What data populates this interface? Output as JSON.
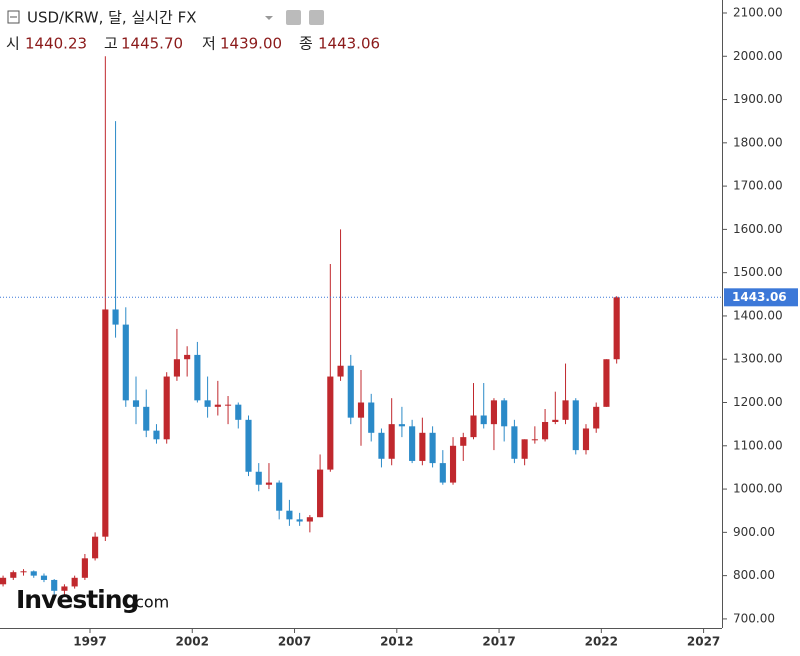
{
  "chart_data": {
    "type": "candlestick",
    "title": "USD/KRW, 달, 실시간 FX",
    "header": {
      "open_label": "시",
      "open": "1440.23",
      "high_label": "고",
      "high": "1445.70",
      "low_label": "저",
      "low": "1439.00",
      "close_label": "종",
      "close": "1443.06"
    },
    "logo": {
      "brand": "Investing",
      "suffix": ".com"
    },
    "x": [
      1992.75,
      1993.25,
      1993.75,
      1994.25,
      1994.75,
      1995.25,
      1995.75,
      1996.25,
      1996.75,
      1997.25,
      1997.75,
      1998.25,
      1998.75,
      1999.25,
      1999.75,
      2000.25,
      2000.75,
      2001.25,
      2001.75,
      2002.25,
      2002.75,
      2003.25,
      2003.75,
      2004.25,
      2004.75,
      2005.25,
      2005.75,
      2006.25,
      2006.75,
      2007.25,
      2007.75,
      2008.25,
      2008.75,
      2009.25,
      2009.75,
      2010.25,
      2010.75,
      2011.25,
      2011.75,
      2012.25,
      2012.75,
      2013.25,
      2013.75,
      2014.25,
      2014.75,
      2015.25,
      2015.75,
      2016.25,
      2016.75,
      2017.25,
      2017.75,
      2018.25,
      2018.75,
      2019.25,
      2019.75,
      2020.25,
      2020.75,
      2021.25,
      2021.75,
      2022.25,
      2022.75
    ],
    "open": [
      780,
      795,
      808,
      810,
      800,
      790,
      765,
      775,
      795,
      840,
      890,
      1415,
      1380,
      1205,
      1190,
      1135,
      1115,
      1260,
      1300,
      1310,
      1205,
      1190,
      1195,
      1195,
      1160,
      1040,
      1010,
      1015,
      950,
      930,
      925,
      935,
      1045,
      1260,
      1285,
      1165,
      1200,
      1130,
      1070,
      1150,
      1145,
      1065,
      1130,
      1060,
      1015,
      1100,
      1120,
      1170,
      1150,
      1205,
      1145,
      1070,
      1115,
      1115,
      1155,
      1160,
      1205,
      1090,
      1140,
      1190,
      1300
    ],
    "high": [
      800,
      812,
      815,
      812,
      805,
      792,
      780,
      800,
      850,
      900,
      2000,
      1850,
      1420,
      1260,
      1230,
      1150,
      1270,
      1370,
      1330,
      1340,
      1260,
      1250,
      1215,
      1200,
      1170,
      1060,
      1060,
      1020,
      975,
      945,
      940,
      1080,
      1520,
      1600,
      1310,
      1275,
      1220,
      1140,
      1210,
      1190,
      1160,
      1165,
      1145,
      1090,
      1120,
      1130,
      1245,
      1245,
      1210,
      1210,
      1160,
      1115,
      1145,
      1185,
      1225,
      1290,
      1210,
      1150,
      1200,
      1300,
      1445.7
    ],
    "low": [
      775,
      790,
      800,
      795,
      785,
      755,
      755,
      770,
      790,
      835,
      880,
      1350,
      1190,
      1150,
      1120,
      1105,
      1105,
      1250,
      1260,
      1200,
      1165,
      1170,
      1150,
      1140,
      1030,
      995,
      1000,
      930,
      915,
      915,
      900,
      935,
      1040,
      1250,
      1150,
      1100,
      1110,
      1050,
      1055,
      1120,
      1060,
      1055,
      1050,
      1010,
      1010,
      1065,
      1115,
      1140,
      1090,
      1110,
      1060,
      1055,
      1105,
      1110,
      1150,
      1150,
      1080,
      1080,
      1130,
      1190,
      1290
    ],
    "close": [
      795,
      808,
      810,
      800,
      790,
      765,
      775,
      795,
      840,
      890,
      1415,
      1380,
      1205,
      1190,
      1135,
      1115,
      1260,
      1300,
      1310,
      1205,
      1190,
      1195,
      1195,
      1160,
      1040,
      1010,
      1015,
      950,
      930,
      925,
      935,
      1045,
      1260,
      1285,
      1165,
      1200,
      1130,
      1070,
      1150,
      1145,
      1065,
      1130,
      1060,
      1015,
      1100,
      1120,
      1170,
      1150,
      1205,
      1145,
      1070,
      1115,
      1115,
      1155,
      1160,
      1205,
      1090,
      1140,
      1190,
      1300,
      1443.06
    ],
    "up_color": "#c0282d",
    "down_color": "#2b8ac8",
    "last_price": 1443.06,
    "last_price_color": "#3c78d8",
    "xlim": [
      1992.6,
      2027.9
    ],
    "xticks": [
      1997,
      2002,
      2007,
      2012,
      2017,
      2022,
      2027
    ],
    "ylim": [
      679,
      2130
    ],
    "yticks": [
      {
        "value": 700,
        "label": "700.00"
      },
      {
        "value": 800,
        "label": "800.00"
      },
      {
        "value": 900,
        "label": "900.00"
      },
      {
        "value": 1000,
        "label": "1000.00"
      },
      {
        "value": 1100,
        "label": "1100.00"
      },
      {
        "value": 1200,
        "label": "1200.00"
      },
      {
        "value": 1300,
        "label": "1300.00"
      },
      {
        "value": 1400,
        "label": "1400.00"
      },
      {
        "value": 1500,
        "label": "1500.00"
      },
      {
        "value": 1600,
        "label": "1600.00"
      },
      {
        "value": 1700,
        "label": "1700.00"
      },
      {
        "value": 1800,
        "label": "1800.00"
      },
      {
        "value": 1900,
        "label": "1900.00"
      },
      {
        "value": 2000,
        "label": "2000.00"
      },
      {
        "value": 2100,
        "label": "2100.00"
      }
    ]
  }
}
